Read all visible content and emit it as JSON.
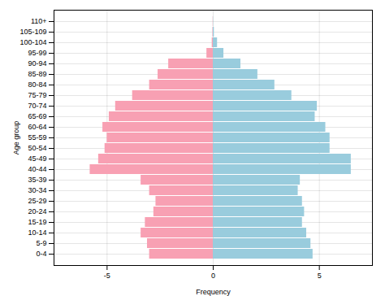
{
  "chart_data": {
    "type": "bar",
    "orientation": "horizontal",
    "categories": [
      "0-4",
      "5-9",
      "10-14",
      "15-19",
      "20-24",
      "25-29",
      "30-34",
      "35-39",
      "40-44",
      "45-49",
      "50-54",
      "55-59",
      "60-64",
      "65-69",
      "70-74",
      "75-79",
      "80-84",
      "85-89",
      "90-94",
      "95-99",
      "100-104",
      "105-109",
      "110+"
    ],
    "series": [
      {
        "color": "#F8A0B3",
        "values": [
          -3.0,
          -3.1,
          -3.4,
          -3.2,
          -2.8,
          -2.7,
          -3.0,
          -3.4,
          -5.8,
          -5.4,
          -5.1,
          -5.0,
          -5.2,
          -4.9,
          -4.6,
          -3.8,
          -3.0,
          -2.6,
          -2.1,
          -0.3,
          -0.05,
          -0.02,
          -0.01
        ]
      },
      {
        "color": "#99CCDD",
        "values": [
          4.7,
          4.6,
          4.4,
          4.2,
          4.3,
          4.2,
          4.0,
          4.1,
          6.5,
          6.5,
          5.5,
          5.5,
          5.3,
          4.8,
          4.9,
          3.7,
          2.9,
          2.1,
          1.3,
          0.5,
          0.2,
          0.05,
          0.01
        ]
      }
    ],
    "xlabel": "Frequency",
    "ylabel": "Age group",
    "xlim": [
      -7.5,
      7.5
    ],
    "xticks": [
      -5,
      0,
      5
    ],
    "grid": true
  }
}
